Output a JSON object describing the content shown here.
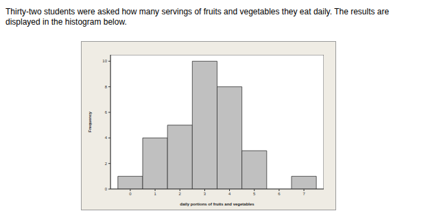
{
  "chart_data": {
    "type": "histogram",
    "title": "Thirty-two students were asked how many servings of fruits and vegetables they eat daily. The results are displayed in the histogram below.",
    "x_label": "daily portions of fruits and vegetables",
    "y_label": "Frequency",
    "bins": [
      -0.5,
      0.5,
      1.5,
      2.5,
      3.5,
      4.5,
      5.5,
      6.5,
      7.5
    ],
    "counts": [
      1,
      4,
      5,
      10,
      8,
      3,
      0,
      1
    ],
    "color": "#c0c0c0",
    "xlim": [
      -0.8,
      7.8
    ],
    "xticks": [
      0,
      1,
      2,
      3,
      4,
      5,
      6,
      7
    ],
    "ylim": [
      0,
      10.5
    ],
    "yticks": [
      0,
      2,
      4,
      6,
      8,
      10
    ],
    "grid": false
  }
}
